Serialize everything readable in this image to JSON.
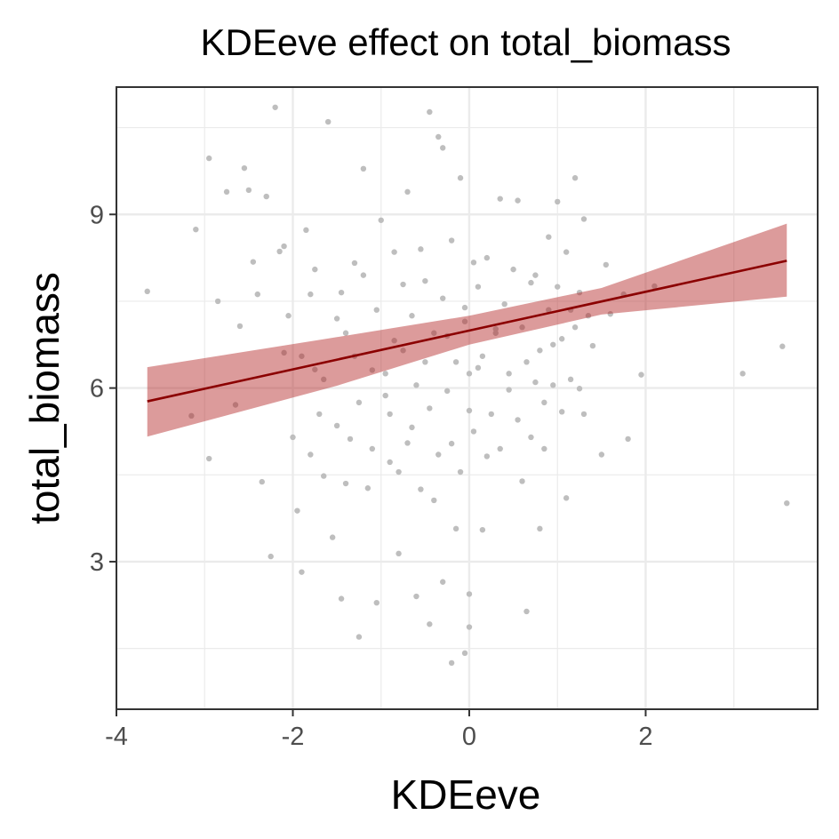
{
  "chart_data": {
    "type": "scatter",
    "title": "KDEeve effect on total_biomass",
    "xlabel": "KDEeve",
    "ylabel": "total_biomass",
    "xlim": [
      -4,
      3.95
    ],
    "ylim": [
      0.45,
      11.2
    ],
    "x_ticks": [
      -4,
      -2,
      0,
      2
    ],
    "x_tick_labels": [
      "-4",
      "-2",
      "0",
      "2"
    ],
    "y_ticks": [
      3,
      6,
      9
    ],
    "y_tick_labels": [
      "3",
      "6",
      "9"
    ],
    "grid": true,
    "legend": "none",
    "colors": {
      "points": "#bebebe",
      "fit_line": "#8b0000",
      "ribbon": "#b22222",
      "grid": "#ebebeb",
      "panel_border": "#333333",
      "tick_label": "#4d4d4d"
    },
    "fit": {
      "method": "linear",
      "line": [
        {
          "x": -3.65,
          "y": 5.77
        },
        {
          "x": 3.6,
          "y": 8.2
        }
      ],
      "ribbon_upper": [
        {
          "x": -3.65,
          "y": 6.36
        },
        {
          "x": -1.5,
          "y": 6.88
        },
        {
          "x": 0,
          "y": 7.25
        },
        {
          "x": 1.5,
          "y": 7.73
        },
        {
          "x": 3.6,
          "y": 8.84
        }
      ],
      "ribbon_lower": [
        {
          "x": -3.65,
          "y": 5.16
        },
        {
          "x": -1.5,
          "y": 6.04
        },
        {
          "x": 0,
          "y": 6.75
        },
        {
          "x": 1.5,
          "y": 7.27
        },
        {
          "x": 3.6,
          "y": 7.58
        }
      ]
    },
    "points": [
      [
        -3.65,
        7.67
      ],
      [
        -3.15,
        5.52
      ],
      [
        -3.1,
        8.74
      ],
      [
        -2.95,
        4.78
      ],
      [
        -2.95,
        9.97
      ],
      [
        -2.85,
        7.5
      ],
      [
        -2.75,
        9.39
      ],
      [
        -2.65,
        5.71
      ],
      [
        -2.6,
        7.07
      ],
      [
        -2.55,
        9.8
      ],
      [
        -2.5,
        9.42
      ],
      [
        -2.45,
        8.18
      ],
      [
        -2.4,
        7.62
      ],
      [
        -2.35,
        4.38
      ],
      [
        -2.3,
        9.31
      ],
      [
        -2.25,
        3.09
      ],
      [
        -2.2,
        10.85
      ],
      [
        -2.15,
        8.36
      ],
      [
        -2.1,
        6.61
      ],
      [
        -2.05,
        7.25
      ],
      [
        -2.0,
        5.15
      ],
      [
        -1.95,
        3.88
      ],
      [
        -1.9,
        2.82
      ],
      [
        -1.85,
        8.73
      ],
      [
        -1.8,
        7.62
      ],
      [
        -1.75,
        6.32
      ],
      [
        -1.7,
        5.55
      ],
      [
        -1.65,
        4.48
      ],
      [
        -1.6,
        10.6
      ],
      [
        -1.55,
        3.42
      ],
      [
        -1.5,
        7.2
      ],
      [
        -1.45,
        2.36
      ],
      [
        -1.4,
        6.95
      ],
      [
        -1.35,
        5.12
      ],
      [
        -1.3,
        8.16
      ],
      [
        -1.25,
        1.7
      ],
      [
        -1.2,
        9.79
      ],
      [
        -1.15,
        4.27
      ],
      [
        -1.1,
        6.31
      ],
      [
        -1.05,
        2.29
      ],
      [
        -1.0,
        8.9
      ],
      [
        -0.95,
        5.87
      ],
      [
        -0.9,
        4.72
      ],
      [
        -0.85,
        6.82
      ],
      [
        -0.8,
        3.14
      ],
      [
        -0.75,
        7.79
      ],
      [
        -0.7,
        9.39
      ],
      [
        -0.65,
        5.32
      ],
      [
        -0.6,
        2.4
      ],
      [
        -0.55,
        8.4
      ],
      [
        -0.5,
        6.45
      ],
      [
        -0.45,
        10.77
      ],
      [
        -0.45,
        1.92
      ],
      [
        -0.4,
        4.06
      ],
      [
        -0.35,
        10.34
      ],
      [
        -0.3,
        2.65
      ],
      [
        -0.3,
        10.15
      ],
      [
        -0.25,
        6.9
      ],
      [
        -0.2,
        5.04
      ],
      [
        -0.2,
        1.25
      ],
      [
        -0.15,
        3.57
      ],
      [
        -0.1,
        9.63
      ],
      [
        -0.05,
        7.39
      ],
      [
        -0.05,
        1.42
      ],
      [
        0.0,
        5.61
      ],
      [
        0.0,
        2.44
      ],
      [
        0.0,
        1.87
      ],
      [
        0.05,
        8.17
      ],
      [
        0.1,
        6.35
      ],
      [
        0.15,
        3.55
      ],
      [
        0.2,
        4.82
      ],
      [
        0.3,
        7.02
      ],
      [
        0.35,
        9.27
      ],
      [
        0.45,
        5.97
      ],
      [
        0.55,
        9.24
      ],
      [
        0.6,
        4.39
      ],
      [
        0.65,
        2.14
      ],
      [
        0.7,
        7.82
      ],
      [
        0.75,
        6.1
      ],
      [
        0.8,
        3.57
      ],
      [
        0.85,
        4.95
      ],
      [
        0.9,
        8.61
      ],
      [
        0.95,
        6.75
      ],
      [
        1.0,
        9.22
      ],
      [
        1.05,
        5.59
      ],
      [
        1.1,
        4.1
      ],
      [
        1.15,
        7.35
      ],
      [
        1.2,
        9.63
      ],
      [
        1.25,
        5.99
      ],
      [
        1.3,
        8.92
      ],
      [
        1.4,
        6.73
      ],
      [
        1.5,
        4.85
      ],
      [
        1.55,
        8.13
      ],
      [
        1.6,
        7.28
      ],
      [
        1.75,
        7.62
      ],
      [
        1.8,
        5.12
      ],
      [
        1.95,
        6.23
      ],
      [
        2.1,
        7.76
      ],
      [
        3.1,
        6.25
      ],
      [
        3.55,
        6.72
      ],
      [
        3.6,
        4.01
      ],
      [
        -2.1,
        8.45
      ],
      [
        -1.9,
        6.55
      ],
      [
        -1.8,
        4.85
      ],
      [
        -1.75,
        8.05
      ],
      [
        -1.65,
        6.15
      ],
      [
        -1.5,
        5.35
      ],
      [
        -1.45,
        7.65
      ],
      [
        -1.4,
        4.35
      ],
      [
        -1.3,
        6.55
      ],
      [
        -1.25,
        5.75
      ],
      [
        -1.2,
        7.95
      ],
      [
        -1.1,
        4.95
      ],
      [
        -1.05,
        7.35
      ],
      [
        -0.95,
        6.25
      ],
      [
        -0.9,
        5.55
      ],
      [
        -0.85,
        8.35
      ],
      [
        -0.8,
        4.55
      ],
      [
        -0.75,
        6.65
      ],
      [
        -0.7,
        5.05
      ],
      [
        -0.65,
        7.25
      ],
      [
        -0.6,
        6.05
      ],
      [
        -0.55,
        4.25
      ],
      [
        -0.5,
        7.85
      ],
      [
        -0.45,
        5.65
      ],
      [
        -0.4,
        6.95
      ],
      [
        -0.35,
        4.85
      ],
      [
        -0.3,
        7.55
      ],
      [
        -0.25,
        5.95
      ],
      [
        -0.2,
        8.55
      ],
      [
        -0.15,
        6.45
      ],
      [
        -0.1,
        4.55
      ],
      [
        -0.05,
        7.15
      ],
      [
        0.0,
        6.25
      ],
      [
        0.05,
        5.25
      ],
      [
        0.1,
        7.75
      ],
      [
        0.15,
        6.55
      ],
      [
        0.2,
        8.25
      ],
      [
        0.25,
        5.55
      ],
      [
        0.3,
        6.95
      ],
      [
        0.35,
        4.95
      ],
      [
        0.4,
        7.45
      ],
      [
        0.45,
        6.25
      ],
      [
        0.5,
        8.05
      ],
      [
        0.55,
        5.45
      ],
      [
        0.6,
        7.05
      ],
      [
        0.65,
        6.45
      ],
      [
        0.7,
        5.15
      ],
      [
        0.75,
        7.95
      ],
      [
        0.8,
        6.65
      ],
      [
        0.85,
        5.75
      ],
      [
        0.9,
        7.35
      ],
      [
        0.95,
        6.05
      ],
      [
        1.0,
        7.75
      ],
      [
        1.05,
        6.85
      ],
      [
        1.1,
        8.35
      ],
      [
        1.15,
        6.15
      ],
      [
        1.2,
        7.05
      ],
      [
        1.25,
        7.65
      ],
      [
        1.3,
        5.55
      ],
      [
        1.35,
        7.25
      ]
    ]
  }
}
